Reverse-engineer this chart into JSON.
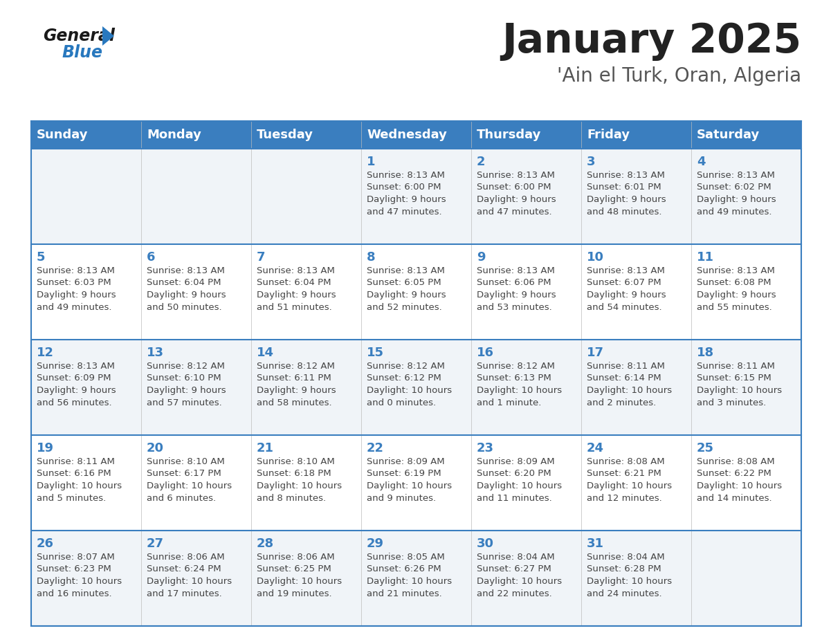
{
  "title": "January 2025",
  "subtitle": "'Ain el Turk, Oran, Algeria",
  "days_of_week": [
    "Sunday",
    "Monday",
    "Tuesday",
    "Wednesday",
    "Thursday",
    "Friday",
    "Saturday"
  ],
  "header_bg": "#3A7EBF",
  "header_text": "#FFFFFF",
  "row_bg_odd": "#F0F4F8",
  "row_bg_even": "#FFFFFF",
  "border_color": "#3A7EBF",
  "separator_color": "#3A7EBF",
  "day_number_color": "#3A7EBF",
  "cell_text_color": "#444444",
  "title_color": "#222222",
  "subtitle_color": "#555555",
  "logo_general_color": "#1a1a1a",
  "logo_blue_color": "#2878BE",
  "calendar_data": [
    {
      "day": 1,
      "col": 3,
      "row": 0,
      "sunrise": "8:13 AM",
      "sunset": "6:00 PM",
      "daylight": "9 hours",
      "daylight2": "and 47 minutes."
    },
    {
      "day": 2,
      "col": 4,
      "row": 0,
      "sunrise": "8:13 AM",
      "sunset": "6:00 PM",
      "daylight": "9 hours",
      "daylight2": "and 47 minutes."
    },
    {
      "day": 3,
      "col": 5,
      "row": 0,
      "sunrise": "8:13 AM",
      "sunset": "6:01 PM",
      "daylight": "9 hours",
      "daylight2": "and 48 minutes."
    },
    {
      "day": 4,
      "col": 6,
      "row": 0,
      "sunrise": "8:13 AM",
      "sunset": "6:02 PM",
      "daylight": "9 hours",
      "daylight2": "and 49 minutes."
    },
    {
      "day": 5,
      "col": 0,
      "row": 1,
      "sunrise": "8:13 AM",
      "sunset": "6:03 PM",
      "daylight": "9 hours",
      "daylight2": "and 49 minutes."
    },
    {
      "day": 6,
      "col": 1,
      "row": 1,
      "sunrise": "8:13 AM",
      "sunset": "6:04 PM",
      "daylight": "9 hours",
      "daylight2": "and 50 minutes."
    },
    {
      "day": 7,
      "col": 2,
      "row": 1,
      "sunrise": "8:13 AM",
      "sunset": "6:04 PM",
      "daylight": "9 hours",
      "daylight2": "and 51 minutes."
    },
    {
      "day": 8,
      "col": 3,
      "row": 1,
      "sunrise": "8:13 AM",
      "sunset": "6:05 PM",
      "daylight": "9 hours",
      "daylight2": "and 52 minutes."
    },
    {
      "day": 9,
      "col": 4,
      "row": 1,
      "sunrise": "8:13 AM",
      "sunset": "6:06 PM",
      "daylight": "9 hours",
      "daylight2": "and 53 minutes."
    },
    {
      "day": 10,
      "col": 5,
      "row": 1,
      "sunrise": "8:13 AM",
      "sunset": "6:07 PM",
      "daylight": "9 hours",
      "daylight2": "and 54 minutes."
    },
    {
      "day": 11,
      "col": 6,
      "row": 1,
      "sunrise": "8:13 AM",
      "sunset": "6:08 PM",
      "daylight": "9 hours",
      "daylight2": "and 55 minutes."
    },
    {
      "day": 12,
      "col": 0,
      "row": 2,
      "sunrise": "8:13 AM",
      "sunset": "6:09 PM",
      "daylight": "9 hours",
      "daylight2": "and 56 minutes."
    },
    {
      "day": 13,
      "col": 1,
      "row": 2,
      "sunrise": "8:12 AM",
      "sunset": "6:10 PM",
      "daylight": "9 hours",
      "daylight2": "and 57 minutes."
    },
    {
      "day": 14,
      "col": 2,
      "row": 2,
      "sunrise": "8:12 AM",
      "sunset": "6:11 PM",
      "daylight": "9 hours",
      "daylight2": "and 58 minutes."
    },
    {
      "day": 15,
      "col": 3,
      "row": 2,
      "sunrise": "8:12 AM",
      "sunset": "6:12 PM",
      "daylight": "10 hours",
      "daylight2": "and 0 minutes."
    },
    {
      "day": 16,
      "col": 4,
      "row": 2,
      "sunrise": "8:12 AM",
      "sunset": "6:13 PM",
      "daylight": "10 hours",
      "daylight2": "and 1 minute."
    },
    {
      "day": 17,
      "col": 5,
      "row": 2,
      "sunrise": "8:11 AM",
      "sunset": "6:14 PM",
      "daylight": "10 hours",
      "daylight2": "and 2 minutes."
    },
    {
      "day": 18,
      "col": 6,
      "row": 2,
      "sunrise": "8:11 AM",
      "sunset": "6:15 PM",
      "daylight": "10 hours",
      "daylight2": "and 3 minutes."
    },
    {
      "day": 19,
      "col": 0,
      "row": 3,
      "sunrise": "8:11 AM",
      "sunset": "6:16 PM",
      "daylight": "10 hours",
      "daylight2": "and 5 minutes."
    },
    {
      "day": 20,
      "col": 1,
      "row": 3,
      "sunrise": "8:10 AM",
      "sunset": "6:17 PM",
      "daylight": "10 hours",
      "daylight2": "and 6 minutes."
    },
    {
      "day": 21,
      "col": 2,
      "row": 3,
      "sunrise": "8:10 AM",
      "sunset": "6:18 PM",
      "daylight": "10 hours",
      "daylight2": "and 8 minutes."
    },
    {
      "day": 22,
      "col": 3,
      "row": 3,
      "sunrise": "8:09 AM",
      "sunset": "6:19 PM",
      "daylight": "10 hours",
      "daylight2": "and 9 minutes."
    },
    {
      "day": 23,
      "col": 4,
      "row": 3,
      "sunrise": "8:09 AM",
      "sunset": "6:20 PM",
      "daylight": "10 hours",
      "daylight2": "and 11 minutes."
    },
    {
      "day": 24,
      "col": 5,
      "row": 3,
      "sunrise": "8:08 AM",
      "sunset": "6:21 PM",
      "daylight": "10 hours",
      "daylight2": "and 12 minutes."
    },
    {
      "day": 25,
      "col": 6,
      "row": 3,
      "sunrise": "8:08 AM",
      "sunset": "6:22 PM",
      "daylight": "10 hours",
      "daylight2": "and 14 minutes."
    },
    {
      "day": 26,
      "col": 0,
      "row": 4,
      "sunrise": "8:07 AM",
      "sunset": "6:23 PM",
      "daylight": "10 hours",
      "daylight2": "and 16 minutes."
    },
    {
      "day": 27,
      "col": 1,
      "row": 4,
      "sunrise": "8:06 AM",
      "sunset": "6:24 PM",
      "daylight": "10 hours",
      "daylight2": "and 17 minutes."
    },
    {
      "day": 28,
      "col": 2,
      "row": 4,
      "sunrise": "8:06 AM",
      "sunset": "6:25 PM",
      "daylight": "10 hours",
      "daylight2": "and 19 minutes."
    },
    {
      "day": 29,
      "col": 3,
      "row": 4,
      "sunrise": "8:05 AM",
      "sunset": "6:26 PM",
      "daylight": "10 hours",
      "daylight2": "and 21 minutes."
    },
    {
      "day": 30,
      "col": 4,
      "row": 4,
      "sunrise": "8:04 AM",
      "sunset": "6:27 PM",
      "daylight": "10 hours",
      "daylight2": "and 22 minutes."
    },
    {
      "day": 31,
      "col": 5,
      "row": 4,
      "sunrise": "8:04 AM",
      "sunset": "6:28 PM",
      "daylight": "10 hours",
      "daylight2": "and 24 minutes."
    }
  ]
}
